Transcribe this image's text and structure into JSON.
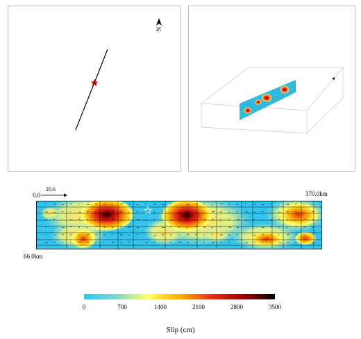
{
  "map": {
    "north_label": "N",
    "north_arrow_icon": "north-arrow-icon"
  },
  "slip_model": {
    "top_left_label": "0.0",
    "scale_label": "20.6",
    "top_right_label": "370.0km",
    "bottom_left_label": "66.0km"
  },
  "colorbar": {
    "ticks": [
      "0",
      "700",
      "1400",
      "2100",
      "2800",
      "3500"
    ],
    "unit_label": "Slip (cm)",
    "colors": [
      "#2ec8f0",
      "#7fd7d0",
      "#ffff66",
      "#ffb000",
      "#e8301a",
      "#a00000",
      "#000000"
    ]
  },
  "colors": {
    "fault_trace": "#000000",
    "epicenter": "#d00000",
    "hypocenter_star": "#ffffff",
    "grid_lines": "#000000"
  }
}
